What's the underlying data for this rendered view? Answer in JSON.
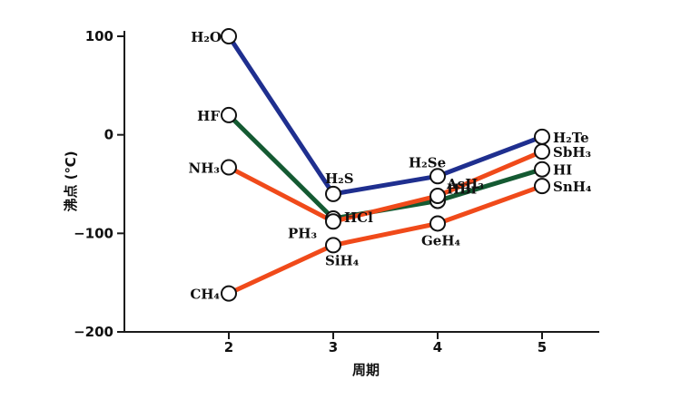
{
  "chart_data": {
    "type": "line",
    "xlabel": "周期",
    "ylabel": "沸点 (℃)",
    "x_ticks": [
      "2",
      "3",
      "4",
      "5"
    ],
    "y_ticks": [
      "100",
      "0",
      "−100",
      "−200"
    ],
    "xlim": [
      1.0,
      5.55
    ],
    "ylim": [
      -200,
      100
    ],
    "colors": {
      "group16": "#1f2f8f",
      "group17": "#145a32",
      "group15": "#f04a1a",
      "group14": "#f04a1a"
    },
    "series": [
      {
        "key": "group16",
        "points": [
          {
            "x": 2,
            "y": 100,
            "label": "H₂O"
          },
          {
            "x": 3,
            "y": -60,
            "label": "H₂S"
          },
          {
            "x": 4,
            "y": -42,
            "label": "H₂Se"
          },
          {
            "x": 5,
            "y": -2,
            "label": "H₂Te"
          }
        ]
      },
      {
        "key": "group17",
        "points": [
          {
            "x": 2,
            "y": 20,
            "label": "HF"
          },
          {
            "x": 3,
            "y": -85,
            "label": "HCl"
          },
          {
            "x": 4,
            "y": -67,
            "label": "HBr"
          },
          {
            "x": 5,
            "y": -35,
            "label": "HI"
          }
        ]
      },
      {
        "key": "group15",
        "points": [
          {
            "x": 2,
            "y": -33,
            "label": "NH₃"
          },
          {
            "x": 3,
            "y": -88,
            "label": "PH₃"
          },
          {
            "x": 4,
            "y": -62,
            "label": "AsH₃"
          },
          {
            "x": 5,
            "y": -17,
            "label": "SbH₃"
          }
        ]
      },
      {
        "key": "group14",
        "points": [
          {
            "x": 2,
            "y": -161,
            "label": "CH₄"
          },
          {
            "x": 3,
            "y": -112,
            "label": "SiH₄"
          },
          {
            "x": 4,
            "y": -90,
            "label": "GeH₄"
          },
          {
            "x": 5,
            "y": -52,
            "label": "SnH₄"
          }
        ]
      }
    ]
  }
}
